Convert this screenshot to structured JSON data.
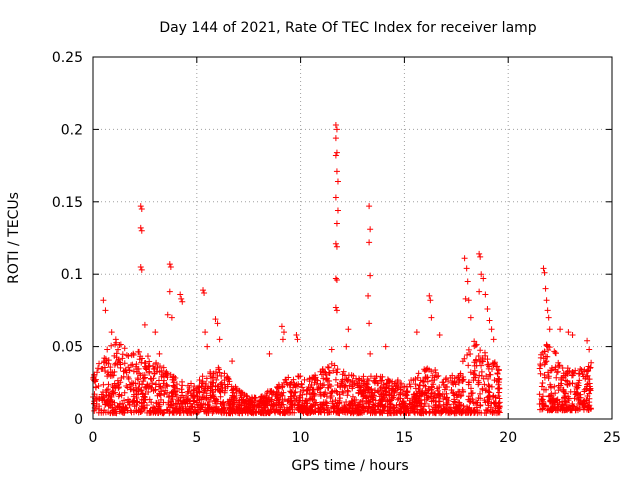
{
  "chart_data": {
    "type": "scatter",
    "title": "Day 144 of 2021, Rate Of TEC Index for receiver lamp",
    "xlabel": "GPS time / hours",
    "ylabel": "ROTI / TECUs",
    "xlim": [
      0,
      25
    ],
    "ylim": [
      0,
      0.25
    ],
    "x_ticks": [
      0,
      5,
      10,
      15,
      20,
      25
    ],
    "x_tick_labels": [
      "0",
      "5",
      "10",
      "15",
      "20",
      "25"
    ],
    "y_ticks": [
      0,
      0.05,
      0.1,
      0.15,
      0.2,
      0.25
    ],
    "y_tick_labels": [
      "0",
      "0.05",
      "0.1",
      "0.15",
      "0.2",
      "0.25"
    ],
    "grid": true,
    "marker": "+",
    "color": "#ff0000",
    "data_gaps_hours": [
      [
        19.6,
        21.5
      ]
    ],
    "series": [
      {
        "name": "ROTI",
        "points": [
          [
            0.5,
            0.082
          ],
          [
            0.6,
            0.075
          ],
          [
            0.9,
            0.06
          ],
          [
            1.1,
            0.055
          ],
          [
            2.3,
            0.147
          ],
          [
            2.35,
            0.145
          ],
          [
            2.3,
            0.132
          ],
          [
            2.35,
            0.13
          ],
          [
            2.3,
            0.105
          ],
          [
            2.35,
            0.103
          ],
          [
            2.5,
            0.065
          ],
          [
            3.0,
            0.06
          ],
          [
            3.2,
            0.045
          ],
          [
            3.7,
            0.107
          ],
          [
            3.75,
            0.105
          ],
          [
            3.7,
            0.088
          ],
          [
            3.6,
            0.072
          ],
          [
            3.8,
            0.07
          ],
          [
            4.2,
            0.086
          ],
          [
            4.25,
            0.083
          ],
          [
            4.3,
            0.081
          ],
          [
            5.3,
            0.089
          ],
          [
            5.35,
            0.087
          ],
          [
            5.4,
            0.06
          ],
          [
            5.5,
            0.05
          ],
          [
            5.9,
            0.069
          ],
          [
            6.0,
            0.066
          ],
          [
            6.1,
            0.055
          ],
          [
            6.7,
            0.04
          ],
          [
            8.5,
            0.045
          ],
          [
            9.1,
            0.064
          ],
          [
            9.2,
            0.06
          ],
          [
            9.15,
            0.055
          ],
          [
            9.8,
            0.058
          ],
          [
            9.85,
            0.055
          ],
          [
            11.5,
            0.048
          ],
          [
            11.7,
            0.203
          ],
          [
            11.75,
            0.2
          ],
          [
            11.7,
            0.194
          ],
          [
            11.75,
            0.184
          ],
          [
            11.7,
            0.182
          ],
          [
            11.75,
            0.171
          ],
          [
            11.8,
            0.164
          ],
          [
            11.7,
            0.153
          ],
          [
            11.8,
            0.144
          ],
          [
            11.75,
            0.135
          ],
          [
            11.7,
            0.121
          ],
          [
            11.75,
            0.119
          ],
          [
            11.7,
            0.097
          ],
          [
            11.75,
            0.096
          ],
          [
            11.7,
            0.077
          ],
          [
            11.75,
            0.075
          ],
          [
            12.3,
            0.062
          ],
          [
            12.2,
            0.05
          ],
          [
            13.3,
            0.147
          ],
          [
            13.35,
            0.131
          ],
          [
            13.3,
            0.122
          ],
          [
            13.35,
            0.099
          ],
          [
            13.25,
            0.085
          ],
          [
            13.3,
            0.066
          ],
          [
            13.35,
            0.045
          ],
          [
            14.1,
            0.05
          ],
          [
            15.6,
            0.06
          ],
          [
            16.2,
            0.085
          ],
          [
            16.25,
            0.082
          ],
          [
            16.3,
            0.07
          ],
          [
            16.7,
            0.058
          ],
          [
            17.9,
            0.111
          ],
          [
            18.0,
            0.104
          ],
          [
            18.05,
            0.095
          ],
          [
            17.95,
            0.083
          ],
          [
            18.1,
            0.082
          ],
          [
            18.2,
            0.07
          ],
          [
            18.6,
            0.114
          ],
          [
            18.65,
            0.112
          ],
          [
            18.7,
            0.1
          ],
          [
            18.8,
            0.097
          ],
          [
            18.6,
            0.088
          ],
          [
            18.9,
            0.086
          ],
          [
            19.0,
            0.076
          ],
          [
            19.1,
            0.068
          ],
          [
            19.2,
            0.062
          ],
          [
            19.3,
            0.055
          ],
          [
            21.7,
            0.104
          ],
          [
            21.75,
            0.101
          ],
          [
            21.8,
            0.09
          ],
          [
            21.85,
            0.082
          ],
          [
            21.9,
            0.075
          ],
          [
            21.95,
            0.07
          ],
          [
            22.0,
            0.062
          ],
          [
            22.5,
            0.062
          ],
          [
            22.9,
            0.06
          ],
          [
            23.1,
            0.058
          ],
          [
            23.8,
            0.054
          ],
          [
            23.9,
            0.048
          ]
        ]
      }
    ],
    "dense_band": {
      "description": "dense low-level ROTI values across the day",
      "segments": [
        {
          "x": [
            0.0,
            19.6
          ],
          "y_min": 0.004,
          "y_max_by_hour": [
            [
              0,
              0.03
            ],
            [
              0.5,
              0.045
            ],
            [
              1,
              0.055
            ],
            [
              1.5,
              0.05
            ],
            [
              2,
              0.05
            ],
            [
              2.5,
              0.045
            ],
            [
              3,
              0.04
            ],
            [
              3.5,
              0.035
            ],
            [
              4,
              0.03
            ],
            [
              4.5,
              0.025
            ],
            [
              5,
              0.025
            ],
            [
              5.5,
              0.035
            ],
            [
              6,
              0.04
            ],
            [
              6.5,
              0.03
            ],
            [
              7,
              0.02
            ],
            [
              7.5,
              0.015
            ],
            [
              8,
              0.015
            ],
            [
              8.5,
              0.02
            ],
            [
              9,
              0.025
            ],
            [
              9.5,
              0.03
            ],
            [
              10,
              0.03
            ],
            [
              10.5,
              0.03
            ],
            [
              11,
              0.035
            ],
            [
              11.5,
              0.04
            ],
            [
              12,
              0.035
            ],
            [
              12.5,
              0.03
            ],
            [
              13,
              0.03
            ],
            [
              13.5,
              0.03
            ],
            [
              14,
              0.03
            ],
            [
              14.5,
              0.028
            ],
            [
              15,
              0.025
            ],
            [
              15.5,
              0.03
            ],
            [
              16,
              0.035
            ],
            [
              16.5,
              0.035
            ],
            [
              17,
              0.03
            ],
            [
              17.5,
              0.03
            ],
            [
              18,
              0.05
            ],
            [
              18.5,
              0.055
            ],
            [
              19,
              0.05
            ],
            [
              19.6,
              0.04
            ]
          ]
        },
        {
          "x": [
            21.5,
            24.0
          ],
          "y_min": 0.006,
          "y_max_by_hour": [
            [
              21.5,
              0.045
            ],
            [
              22,
              0.055
            ],
            [
              22.5,
              0.04
            ],
            [
              23,
              0.035
            ],
            [
              23.5,
              0.035
            ],
            [
              24,
              0.04
            ]
          ]
        }
      ]
    }
  }
}
